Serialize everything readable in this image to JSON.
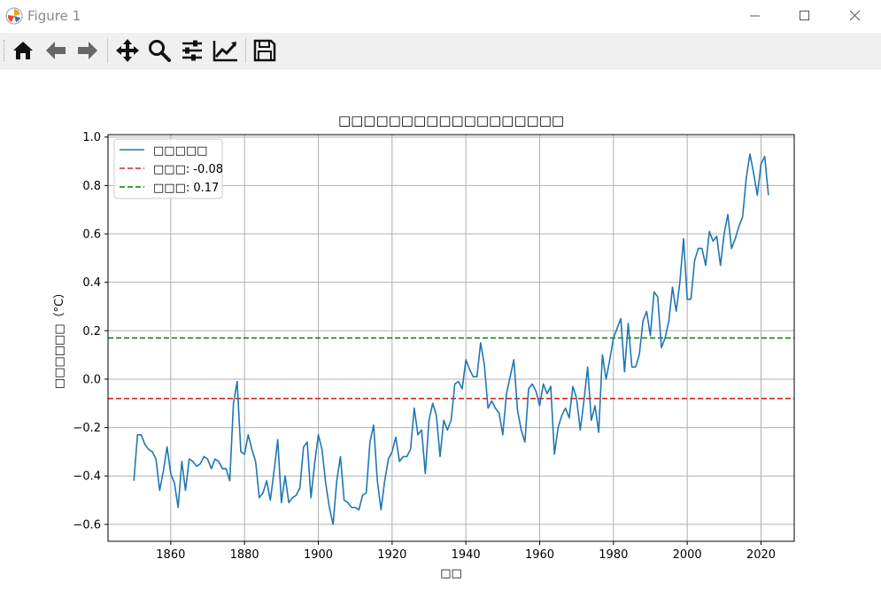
{
  "window": {
    "title": "Figure 1",
    "icons": [
      "matplotlib-logo-icon",
      "minimize-icon",
      "maximize-icon",
      "close-icon"
    ]
  },
  "toolbar": {
    "tools": [
      {
        "name": "home-icon"
      },
      {
        "name": "back-arrow-icon"
      },
      {
        "name": "forward-arrow-icon"
      },
      {
        "name": "pan-icon"
      },
      {
        "name": "zoom-icon"
      },
      {
        "name": "subplots-config-icon"
      },
      {
        "name": "edit-curves-icon"
      },
      {
        "name": "save-icon"
      }
    ]
  },
  "chart_data": {
    "type": "line",
    "title": "□□□□□□□□□□□□□□□□□□",
    "xlabel": "□□",
    "ylabel": "□□□□□□（°C）",
    "xlim": [
      1843,
      2029
    ],
    "ylim": [
      -0.67,
      1.01
    ],
    "xticks": [
      1860,
      1880,
      1900,
      1920,
      1940,
      1960,
      1980,
      2000,
      2020
    ],
    "yticks": [
      -0.6,
      -0.4,
      -0.2,
      0.0,
      0.2,
      0.4,
      0.6,
      0.8,
      1.0
    ],
    "xtick_labels": [
      "1860",
      "1880",
      "1900",
      "1920",
      "1940",
      "1960",
      "1980",
      "2000",
      "2020"
    ],
    "ytick_labels": [
      "−0.6",
      "−0.4",
      "−0.2",
      "0.0",
      "0.2",
      "0.4",
      "0.6",
      "0.8",
      "1.0"
    ],
    "grid": true,
    "legend_position": "top-left",
    "series": [
      {
        "name": "□□□□□",
        "color": "#1f77b4",
        "x_start": 1850,
        "values": [
          -0.42,
          -0.23,
          -0.23,
          -0.27,
          -0.29,
          -0.3,
          -0.33,
          -0.46,
          -0.38,
          -0.28,
          -0.39,
          -0.43,
          -0.53,
          -0.34,
          -0.46,
          -0.33,
          -0.34,
          -0.36,
          -0.35,
          -0.32,
          -0.33,
          -0.37,
          -0.33,
          -0.34,
          -0.37,
          -0.37,
          -0.42,
          -0.1,
          -0.01,
          -0.3,
          -0.31,
          -0.23,
          -0.29,
          -0.34,
          -0.49,
          -0.47,
          -0.42,
          -0.5,
          -0.38,
          -0.25,
          -0.51,
          -0.4,
          -0.51,
          -0.49,
          -0.48,
          -0.45,
          -0.28,
          -0.26,
          -0.49,
          -0.35,
          -0.23,
          -0.29,
          -0.43,
          -0.53,
          -0.6,
          -0.42,
          -0.32,
          -0.5,
          -0.51,
          -0.53,
          -0.53,
          -0.54,
          -0.48,
          -0.47,
          -0.26,
          -0.19,
          -0.42,
          -0.54,
          -0.42,
          -0.33,
          -0.3,
          -0.24,
          -0.34,
          -0.32,
          -0.32,
          -0.29,
          -0.12,
          -0.23,
          -0.21,
          -0.39,
          -0.17,
          -0.1,
          -0.15,
          -0.32,
          -0.17,
          -0.21,
          -0.17,
          -0.02,
          -0.01,
          -0.04,
          0.08,
          0.04,
          0.01,
          0.01,
          0.15,
          0.06,
          -0.12,
          -0.09,
          -0.12,
          -0.14,
          -0.23,
          -0.06,
          0.01,
          0.08,
          -0.13,
          -0.21,
          -0.26,
          -0.04,
          -0.02,
          -0.05,
          -0.11,
          -0.02,
          -0.06,
          -0.03,
          -0.31,
          -0.2,
          -0.15,
          -0.12,
          -0.16,
          -0.03,
          -0.08,
          -0.21,
          -0.09,
          0.05,
          -0.17,
          -0.11,
          -0.22,
          0.1,
          0.0,
          0.08,
          0.17,
          0.21,
          0.25,
          0.03,
          0.23,
          0.05,
          0.05,
          0.1,
          0.24,
          0.28,
          0.18,
          0.36,
          0.34,
          0.13,
          0.17,
          0.24,
          0.38,
          0.28,
          0.4,
          0.58,
          0.33,
          0.33,
          0.49,
          0.54,
          0.54,
          0.47,
          0.61,
          0.57,
          0.59,
          0.47,
          0.6,
          0.68,
          0.54,
          0.58,
          0.63,
          0.67,
          0.83,
          0.93,
          0.85,
          0.76,
          0.89,
          0.92,
          0.76
        ]
      },
      {
        "name": "□□□: -0.08",
        "color": "#d62728",
        "style": "dashed",
        "value": -0.08
      },
      {
        "name": "□□□: 0.17",
        "color": "#008000",
        "style": "dashed",
        "value": 0.17
      }
    ]
  }
}
